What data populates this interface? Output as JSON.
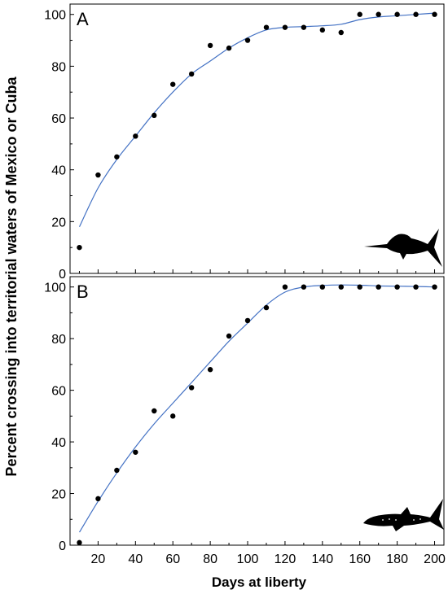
{
  "figure": {
    "ylabel": "Percent crossing into territorial waters of Mexico or Cuba",
    "xlabel": "Days at liberty"
  },
  "colors": {
    "fit_line": "#4472c4",
    "points": "#000000",
    "axes": "#000000"
  },
  "icons": {
    "panel_A": "marlin-silhouette-icon",
    "panel_B": "shark-silhouette-icon"
  },
  "chart_data": [
    {
      "type": "scatter",
      "panel_label": "A",
      "x": [
        10,
        20,
        30,
        40,
        50,
        60,
        70,
        80,
        90,
        100,
        110,
        120,
        130,
        140,
        150,
        160,
        170,
        180,
        190,
        200
      ],
      "y": [
        10,
        38,
        45,
        53,
        61,
        73,
        77,
        88,
        87,
        90,
        95,
        95,
        95,
        94,
        93,
        100,
        100,
        100,
        100,
        100
      ],
      "fit_x": [
        10,
        20,
        30,
        40,
        50,
        60,
        70,
        80,
        90,
        100,
        110,
        120,
        130,
        140,
        150,
        160,
        170,
        180,
        190,
        200
      ],
      "fit_y": [
        18,
        33,
        44,
        53,
        62,
        70,
        77,
        82,
        87,
        91,
        94,
        95,
        95.3,
        95.6,
        96.2,
        98,
        99,
        99.5,
        100,
        100.5
      ],
      "xlim": [
        5,
        205
      ],
      "ylim": [
        0,
        104
      ],
      "xticks": [
        20,
        40,
        60,
        80,
        100,
        120,
        140,
        160,
        180,
        200
      ],
      "yticks": [
        0,
        20,
        40,
        60,
        80,
        100
      ],
      "grid": false
    },
    {
      "type": "scatter",
      "panel_label": "B",
      "x": [
        10,
        20,
        30,
        40,
        50,
        60,
        70,
        80,
        90,
        100,
        110,
        120,
        130,
        140,
        150,
        160,
        170,
        180,
        190,
        200
      ],
      "y": [
        1,
        18,
        29,
        36,
        52,
        50,
        61,
        68,
        81,
        87,
        92,
        100,
        100,
        100,
        100,
        100,
        100,
        100,
        100,
        100
      ],
      "fit_x": [
        10,
        20,
        30,
        40,
        50,
        60,
        70,
        80,
        90,
        100,
        110,
        120,
        130,
        140,
        150,
        160,
        170,
        180,
        190,
        200
      ],
      "fit_y": [
        5,
        17,
        28,
        38,
        47,
        55,
        63,
        71,
        79,
        86,
        93,
        98,
        100,
        100.6,
        100.8,
        100.7,
        100.4,
        100.3,
        100.2,
        100
      ],
      "xlim": [
        5,
        205
      ],
      "ylim": [
        0,
        104
      ],
      "xticks": [
        20,
        40,
        60,
        80,
        100,
        120,
        140,
        160,
        180,
        200
      ],
      "yticks": [
        0,
        20,
        40,
        60,
        80,
        100
      ],
      "grid": false
    }
  ]
}
